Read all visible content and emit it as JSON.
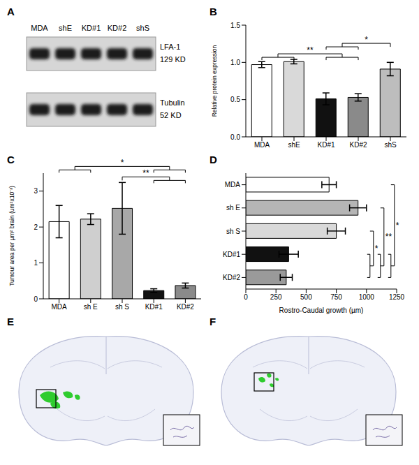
{
  "blot": {
    "title": "A",
    "lanes": [
      "MDA",
      "shE",
      "KD#1",
      "KD#2",
      "shS"
    ],
    "rows": [
      {
        "label": "LFA-1",
        "size": "129 KD"
      },
      {
        "label": "Tubulin",
        "size": "52 KD"
      }
    ]
  },
  "chart_data": [
    {
      "type": "bar",
      "title": "B",
      "y_label": "Relative protein expression",
      "categories": [
        "MDA",
        "shE",
        "KD#1",
        "KD#2",
        "shS"
      ],
      "values": [
        0.97,
        1.01,
        0.51,
        0.53,
        0.91
      ],
      "errors": [
        0.04,
        0.03,
        0.08,
        0.05,
        0.09
      ],
      "colors": [
        "#ffffff",
        "#d9d9d9",
        "#111111",
        "#8a8a8a",
        "#bdbdbd"
      ],
      "ylim": [
        0,
        1.5
      ],
      "yticks": [
        {
          "value": 0,
          "label": "0.0"
        },
        {
          "value": 0.5,
          "label": "0.5"
        },
        {
          "value": 1,
          "label": "1.0"
        },
        {
          "value": 1.5,
          "label": "1.5"
        }
      ],
      "annotations": [
        {
          "text": "**",
          "between": [
            [
              "MDA",
              "shE"
            ],
            [
              "KD#1",
              "KD#2"
            ]
          ]
        },
        {
          "text": "*",
          "between": [
            [
              "KD#1",
              "KD#2"
            ],
            [
              "shS"
            ]
          ]
        }
      ]
    },
    {
      "type": "bar",
      "title": "C",
      "y_label": "Tumour area per µm² brain (um²x10⁻³)",
      "categories": [
        "MDA",
        "sh E",
        "sh S",
        "KD#1",
        "KD#2"
      ],
      "values": [
        2.15,
        2.22,
        2.52,
        0.23,
        0.37
      ],
      "errors": [
        0.45,
        0.15,
        0.72,
        0.05,
        0.07
      ],
      "colors": [
        "#ffffff",
        "#cfcfcf",
        "#a8a8a8",
        "#111111",
        "#8a8a8a"
      ],
      "ylim": [
        0,
        3.5
      ],
      "yticks": [
        0,
        1,
        2,
        3
      ],
      "annotations": [
        {
          "text": "**",
          "between": [
            [
              "sh S"
            ],
            [
              "KD#1",
              "KD#2"
            ]
          ]
        },
        {
          "text": "*",
          "between": [
            [
              "MDA",
              "sh E"
            ],
            [
              "KD#1",
              "KD#2"
            ]
          ]
        }
      ]
    },
    {
      "type": "bar",
      "title": "D",
      "orientation": "horizontal",
      "x_label": "Rostro-Caudal growth (µm)",
      "categories": [
        "MDA",
        "sh E",
        "sh S",
        "KD#1",
        "KD#2"
      ],
      "values": [
        690,
        930,
        750,
        355,
        335
      ],
      "errors": [
        60,
        70,
        75,
        80,
        50
      ],
      "colors": [
        "#ffffff",
        "#b5b5b5",
        "#d9d9d9",
        "#111111",
        "#9a9a9a"
      ],
      "xlim": [
        0,
        1250
      ],
      "xticks": [
        0,
        250,
        500,
        750,
        1000,
        1250
      ],
      "annotations": [
        {
          "text": "*",
          "between": [
            [
              "sh S"
            ],
            [
              "KD#1",
              "KD#2"
            ]
          ]
        },
        {
          "text": "**",
          "between": [
            [
              "sh E"
            ],
            [
              "KD#1",
              "KD#2"
            ]
          ]
        },
        {
          "text": "*",
          "between": [
            [
              "MDA"
            ],
            [
              "KD#1",
              "KD#2"
            ]
          ]
        }
      ]
    }
  ],
  "images": [
    {
      "title": "E"
    },
    {
      "title": "F"
    }
  ]
}
